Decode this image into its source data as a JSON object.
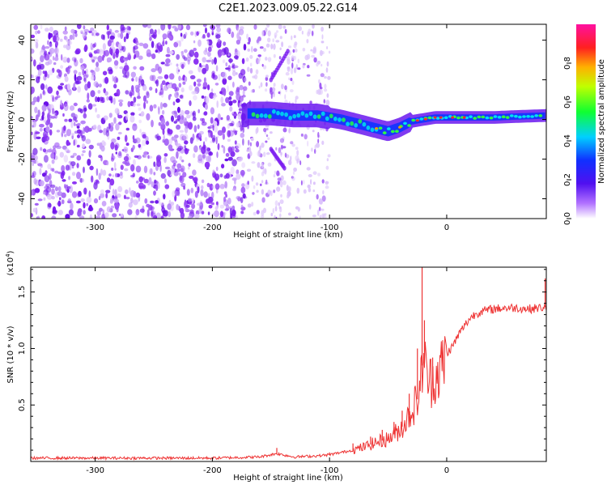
{
  "title": "C2E1.2023.009.05.22.G14",
  "chart_data": [
    {
      "type": "heatmap",
      "title": "C2E1.2023.009.05.22.G14",
      "xlabel": "Height of straight line (km)",
      "ylabel": "Frequency (Hz)",
      "xlim": [
        -355,
        85
      ],
      "ylim": [
        -50,
        48
      ],
      "x_ticks": [
        "-300",
        "-200",
        "-100",
        "0"
      ],
      "y_ticks": [
        "40",
        "20",
        "0",
        "-20",
        "-40"
      ],
      "x_tick_values": [
        -300,
        -200,
        -100,
        0
      ],
      "y_tick_values": [
        40,
        20,
        0,
        -20,
        -40
      ],
      "colorbar": {
        "label": "Normalized spectral amplitude",
        "ticks": [
          "0.0",
          "0.2",
          "0.4",
          "0.6",
          "0.8"
        ],
        "tick_values": [
          0.0,
          0.2,
          0.4,
          0.6,
          0.8
        ],
        "range": [
          0,
          1
        ],
        "colors": [
          "#ffffff",
          "#7a1cf0",
          "#2020ff",
          "#00e5ff",
          "#20ff40",
          "#ffff00",
          "#ff8000",
          "#ff1040",
          "#ff00a0"
        ]
      },
      "description_series": {
        "noise_region_x": [
          -355,
          -170
        ],
        "ridge": [
          {
            "x": -170,
            "y": 3
          },
          {
            "x": -150,
            "y": 3
          },
          {
            "x": -130,
            "y": 2
          },
          {
            "x": -110,
            "y": 2
          },
          {
            "x": -90,
            "y": 0
          },
          {
            "x": -70,
            "y": -3
          },
          {
            "x": -50,
            "y": -6
          },
          {
            "x": -40,
            "y": -4
          },
          {
            "x": -30,
            "y": -1
          },
          {
            "x": -20,
            "y": 0
          },
          {
            "x": -10,
            "y": 1
          },
          {
            "x": 0,
            "y": 1
          },
          {
            "x": 20,
            "y": 1
          },
          {
            "x": 40,
            "y": 1
          },
          {
            "x": 60,
            "y": 1.5
          },
          {
            "x": 85,
            "y": 2
          }
        ]
      }
    },
    {
      "type": "line",
      "xlabel": "Height of straight line (km)",
      "ylabel": "SNR (10 * v/v)",
      "y_exponent_label": "(x10",
      "y_exponent": "4",
      "y_exponent_close": ")",
      "xlim": [
        -355,
        85
      ],
      "ylim": [
        0,
        1.72
      ],
      "x_ticks": [
        "-300",
        "-200",
        "-100",
        "0"
      ],
      "y_ticks": [
        "0.5",
        "1.0",
        "1.5"
      ],
      "x_tick_values": [
        -300,
        -200,
        -100,
        0
      ],
      "y_tick_values": [
        0.5,
        1.0,
        1.5
      ],
      "color": "#ee3333",
      "series": [
        {
          "x": [
            -355,
            -300,
            -250,
            -200,
            -160,
            -145,
            -130,
            -110,
            -100,
            -90,
            -80,
            -70,
            -60,
            -50,
            -40,
            -35,
            -30,
            -25,
            -22,
            -20,
            -18,
            -15,
            -10,
            -5,
            0,
            5,
            10,
            15,
            20,
            25,
            30,
            40,
            50,
            60,
            70,
            80,
            85
          ],
          "values": [
            0.03,
            0.03,
            0.03,
            0.03,
            0.04,
            0.07,
            0.04,
            0.05,
            0.06,
            0.08,
            0.1,
            0.13,
            0.17,
            0.2,
            0.28,
            0.35,
            0.45,
            0.55,
            0.7,
            1.0,
            0.8,
            0.7,
            0.75,
            0.82,
            0.95,
            1.02,
            1.12,
            1.2,
            1.27,
            1.31,
            1.33,
            1.35,
            1.36,
            1.36,
            1.35,
            1.36,
            1.37
          ],
          "spikes": [
            {
              "x": -145,
              "y": 0.12
            },
            {
              "x": -100,
              "y": 0.08
            },
            {
              "x": -80,
              "y": 0.16
            },
            {
              "x": -65,
              "y": 0.22
            },
            {
              "x": -55,
              "y": 0.28
            },
            {
              "x": -45,
              "y": 0.35
            },
            {
              "x": -38,
              "y": 0.45
            },
            {
              "x": -32,
              "y": 0.6
            },
            {
              "x": -25,
              "y": 1.0
            },
            {
              "x": -21,
              "y": 1.72
            },
            {
              "x": -19,
              "y": 1.25
            },
            {
              "x": -12,
              "y": 0.92
            },
            {
              "x": 84,
              "y": 1.62
            }
          ]
        }
      ]
    }
  ]
}
